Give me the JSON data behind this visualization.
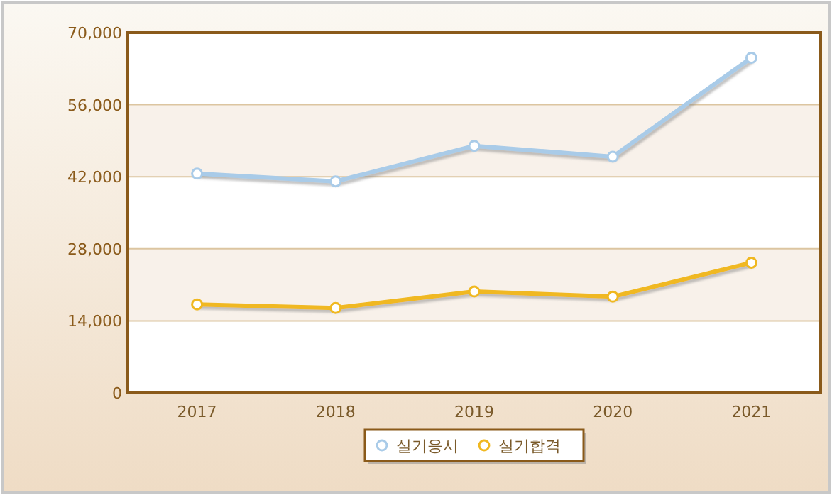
{
  "chart_data": {
    "type": "line",
    "categories": [
      "2017",
      "2018",
      "2019",
      "2020",
      "2021"
    ],
    "series": [
      {
        "name": "실기응시",
        "color": "#a9cbe8",
        "values": [
          42600,
          41100,
          48000,
          45900,
          65100
        ]
      },
      {
        "name": "실기합격",
        "color": "#f0b820",
        "values": [
          17200,
          16500,
          19700,
          18700,
          25300
        ]
      }
    ],
    "ylim": [
      0,
      70000
    ],
    "yticks": [
      {
        "value": 0,
        "label": "0"
      },
      {
        "value": 14000,
        "label": "14,000"
      },
      {
        "value": 28000,
        "label": "28,000"
      },
      {
        "value": 42000,
        "label": "42,000"
      },
      {
        "value": 56000,
        "label": "56,000"
      },
      {
        "value": 70000,
        "label": "70,000"
      }
    ],
    "grid": "y",
    "legend": "bottom",
    "marker": "circle",
    "line_style": "solid"
  }
}
